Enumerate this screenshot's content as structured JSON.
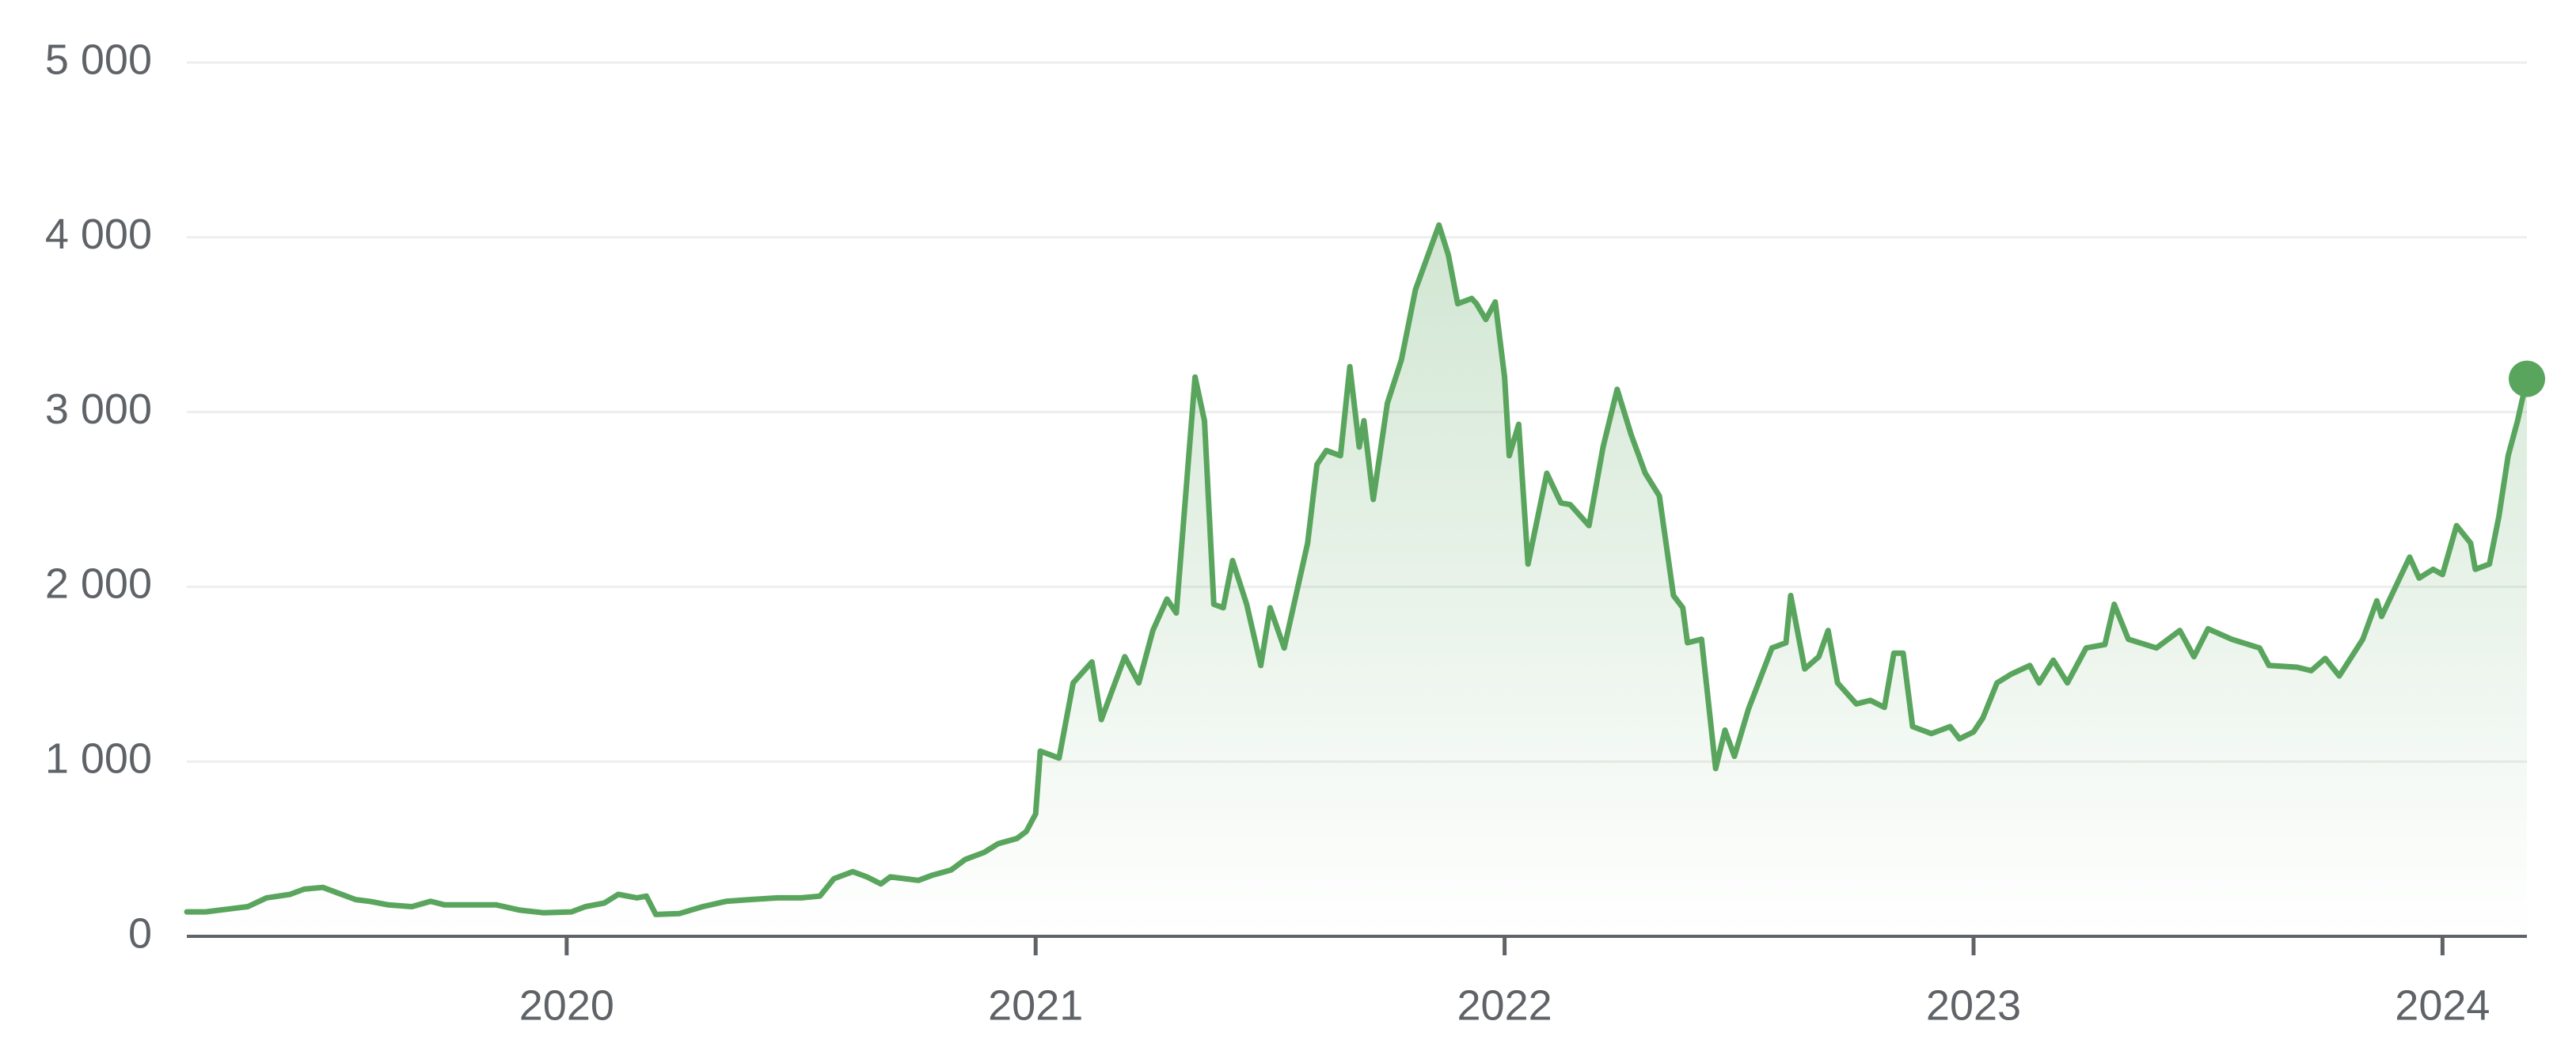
{
  "chart_data": {
    "type": "line",
    "color": "#5aa55e",
    "grid": true,
    "xlim": [
      2019.19,
      2024.18
    ],
    "xticks": [
      2020,
      2021,
      2022,
      2023,
      2024
    ],
    "ylim": [
      0,
      5000
    ],
    "yticks": [
      {
        "value": 0,
        "label": "0"
      },
      {
        "value": 1000,
        "label": "1 000"
      },
      {
        "value": 2000,
        "label": "2 000"
      },
      {
        "value": 3000,
        "label": "3 000"
      },
      {
        "value": 4000,
        "label": "4 000"
      },
      {
        "value": 5000,
        "label": "5 000"
      }
    ],
    "x": [
      2019.19,
      2019.23,
      2019.29,
      2019.32,
      2019.36,
      2019.41,
      2019.44,
      2019.48,
      2019.51,
      2019.55,
      2019.58,
      2019.62,
      2019.67,
      2019.71,
      2019.74,
      2019.8,
      2019.85,
      2019.9,
      2019.95,
      2020.01,
      2020.04,
      2020.08,
      2020.11,
      2020.15,
      2020.17,
      2020.19,
      2020.24,
      2020.29,
      2020.34,
      2020.39,
      2020.45,
      2020.5,
      2020.54,
      2020.57,
      2020.61,
      2020.64,
      2020.67,
      2020.69,
      2020.75,
      2020.78,
      2020.82,
      2020.85,
      2020.89,
      2020.92,
      2020.96,
      2020.98,
      2021.0,
      2021.01,
      2021.05,
      2021.08,
      2021.12,
      2021.14,
      2021.19,
      2021.22,
      2021.25,
      2021.28,
      2021.3,
      2021.34,
      2021.36,
      2021.38,
      2021.4,
      2021.42,
      2021.45,
      2021.48,
      2021.5,
      2021.53,
      2021.58,
      2021.6,
      2021.62,
      2021.65,
      2021.67,
      2021.69,
      2021.7,
      2021.72,
      2021.75,
      2021.78,
      2021.81,
      2021.86,
      2021.88,
      2021.9,
      2021.93,
      2021.94,
      2021.96,
      2021.98,
      2022.0,
      2022.01,
      2022.03,
      2022.05,
      2022.09,
      2022.12,
      2022.14,
      2022.18,
      2022.21,
      2022.24,
      2022.27,
      2022.3,
      2022.33,
      2022.36,
      2022.38,
      2022.39,
      2022.42,
      2022.45,
      2022.47,
      2022.49,
      2022.52,
      2022.57,
      2022.6,
      2022.61,
      2022.64,
      2022.67,
      2022.69,
      2022.71,
      2022.75,
      2022.78,
      2022.81,
      2022.83,
      2022.85,
      2022.87,
      2022.91,
      2022.95,
      2022.97,
      2023.0,
      2023.02,
      2023.05,
      2023.08,
      2023.12,
      2023.14,
      2023.17,
      2023.2,
      2023.24,
      2023.28,
      2023.3,
      2023.33,
      2023.39,
      2023.44,
      2023.47,
      2023.5,
      2023.55,
      2023.61,
      2023.63,
      2023.69,
      2023.72,
      2023.75,
      2023.78,
      2023.83,
      2023.86,
      2023.87,
      2023.9,
      2023.93,
      2023.95,
      2023.98,
      2024.0,
      2024.03,
      2024.06,
      2024.07,
      2024.1,
      2024.12,
      2024.14,
      2024.16,
      2024.18
    ],
    "values": [
      140,
      140,
      160,
      170,
      220,
      240,
      270,
      280,
      250,
      210,
      200,
      180,
      170,
      200,
      180,
      180,
      180,
      150,
      135,
      140,
      170,
      190,
      240,
      220,
      230,
      125,
      130,
      170,
      200,
      210,
      220,
      220,
      230,
      330,
      370,
      340,
      300,
      340,
      320,
      350,
      380,
      440,
      480,
      530,
      560,
      600,
      700,
      1060,
      1020,
      1450,
      1570,
      1240,
      1600,
      1450,
      1750,
      1930,
      1850,
      3200,
      2950,
      1900,
      1880,
      2150,
      1900,
      1550,
      1880,
      1650,
      2250,
      2700,
      2780,
      2750,
      3260,
      2800,
      2950,
      2500,
      3050,
      3300,
      3700,
      4070,
      3900,
      3620,
      3650,
      3620,
      3530,
      3630,
      3200,
      2750,
      2930,
      2130,
      2650,
      2480,
      2470,
      2350,
      2800,
      3130,
      2870,
      2650,
      2520,
      1950,
      1880,
      1680,
      1700,
      960,
      1180,
      1030,
      1300,
      1650,
      1680,
      1950,
      1530,
      1600,
      1750,
      1450,
      1330,
      1350,
      1310,
      1620,
      1620,
      1200,
      1160,
      1200,
      1130,
      1170,
      1250,
      1450,
      1500,
      1550,
      1450,
      1580,
      1450,
      1650,
      1670,
      1900,
      1700,
      1650,
      1750,
      1600,
      1760,
      1700,
      1650,
      1550,
      1540,
      1520,
      1590,
      1490,
      1700,
      1920,
      1830,
      2000,
      2170,
      2050,
      2100,
      2070,
      2350,
      2250,
      2100,
      2130,
      2400,
      2750,
      2950,
      3190
    ]
  }
}
